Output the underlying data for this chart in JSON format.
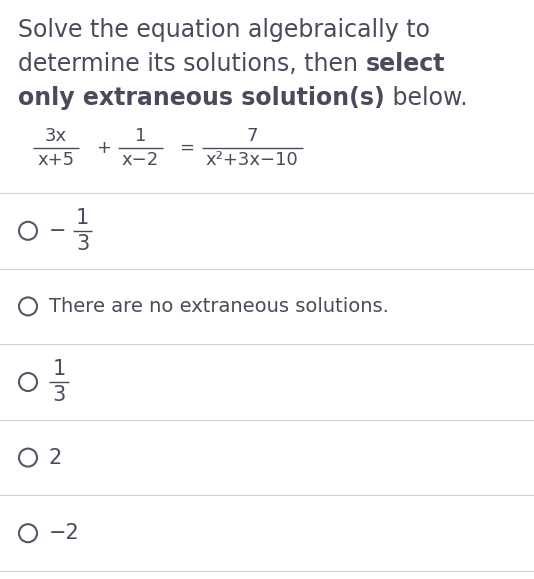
{
  "background_color": "#ffffff",
  "text_color": "#4a4a5a",
  "divider_color": "#d0d0d0",
  "circle_color": "#555566",
  "title_line1": "Solve the equation algebraically to",
  "title_line2_normal": "determine its solutions, then ",
  "title_line2_bold": "select",
  "title_line3_bold": "only extraneous solution(s)",
  "title_line3_normal": " below.",
  "eq_frac1_num": "3x",
  "eq_frac1_den": "x+5",
  "eq_frac2_num": "1",
  "eq_frac2_den": "x−2",
  "eq_frac3_num": "7",
  "eq_frac3_den": "x²+3x−10",
  "options": [
    {
      "type": "fraction",
      "neg": true,
      "num": "1",
      "den": "3"
    },
    {
      "type": "text",
      "text": "There are no extraneous solutions."
    },
    {
      "type": "fraction",
      "neg": false,
      "num": "1",
      "den": "3"
    },
    {
      "type": "simple",
      "text": "2"
    },
    {
      "type": "simple",
      "text": "−2"
    }
  ],
  "title_fontsize": 17,
  "title_bold_fontsize": 17,
  "eq_fontsize": 13,
  "option_fontsize": 15,
  "fig_width": 5.34,
  "fig_height": 5.79,
  "dpi": 100
}
